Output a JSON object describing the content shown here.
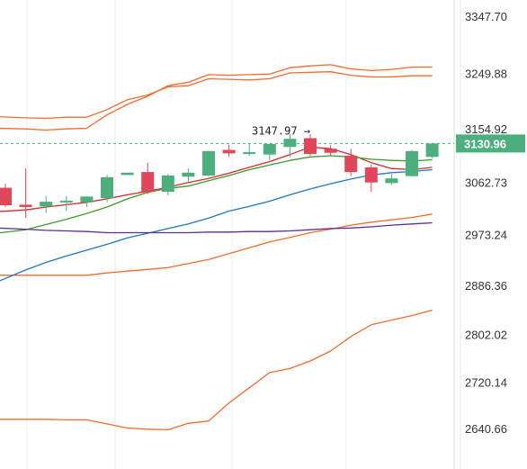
{
  "chart_data": {
    "type": "candlestick",
    "title": "",
    "xlabel": "",
    "ylabel": "",
    "ylim": [
      2618,
      3370
    ],
    "grid": true,
    "y_ticks": [
      "3347.70",
      "3249.88",
      "3154.92",
      "3130.96",
      "3062.73",
      "2973.24",
      "2886.36",
      "2802.02",
      "2720.14",
      "2640.66"
    ],
    "last_price_label": "3130.96",
    "high_annotation": "3147.97 →",
    "high_annotation_value": 3147.97,
    "colors": {
      "up": "#4caf7d",
      "down": "#e0475a",
      "band": "#f26b2d",
      "ma_red": "#d42b2b",
      "ma_green": "#3d9c2a",
      "ma_blue": "#1e78c8",
      "ma_purple": "#5a2d9c",
      "price_line": "#4caf7d",
      "grid": "#ececec",
      "axis": "#dddddd"
    },
    "candles": [
      {
        "o": 3055,
        "h": 3062,
        "c": 3025,
        "l": 3022
      },
      {
        "o": 3026,
        "h": 3088,
        "c": 3022,
        "l": 3003
      },
      {
        "o": 3023,
        "h": 3041,
        "c": 3031,
        "l": 3012
      },
      {
        "o": 3030,
        "h": 3041,
        "c": 3033,
        "l": 3015
      },
      {
        "o": 3030,
        "h": 3040,
        "c": 3040,
        "l": 3022
      },
      {
        "o": 3037,
        "h": 3077,
        "c": 3073,
        "l": 3030
      },
      {
        "o": 3077,
        "h": 3080,
        "c": 3081,
        "l": 3077
      },
      {
        "o": 3082,
        "h": 3098,
        "c": 3048,
        "l": 3044
      },
      {
        "o": 3048,
        "h": 3079,
        "c": 3076,
        "l": 3042
      },
      {
        "o": 3074,
        "h": 3088,
        "c": 3081,
        "l": 3066
      },
      {
        "o": 3076,
        "h": 3118,
        "c": 3118,
        "l": 3074
      },
      {
        "o": 3120,
        "h": 3129,
        "c": 3114,
        "l": 3108
      },
      {
        "o": 3114,
        "h": 3130,
        "c": 3116,
        "l": 3110
      },
      {
        "o": 3112,
        "h": 3130,
        "c": 3130,
        "l": 3102
      },
      {
        "o": 3125,
        "h": 3147,
        "c": 3139,
        "l": 3108
      },
      {
        "o": 3140,
        "h": 3147,
        "c": 3113,
        "l": 3110
      },
      {
        "o": 3122,
        "h": 3128,
        "c": 3115,
        "l": 3110
      },
      {
        "o": 3110,
        "h": 3122,
        "c": 3082,
        "l": 3075
      },
      {
        "o": 3090,
        "h": 3095,
        "c": 3064,
        "l": 3048
      },
      {
        "o": 3063,
        "h": 3079,
        "c": 3071,
        "l": 3060
      },
      {
        "o": 3075,
        "h": 3120,
        "c": 3118,
        "l": 3075
      },
      {
        "o": 3108,
        "h": 3132,
        "c": 3131,
        "l": 3106
      }
    ],
    "series": [
      {
        "name": "",
        "kind": "band_upper",
        "values": [
          3177,
          3175,
          3174,
          3176,
          3176,
          3189,
          3206,
          3214,
          3228,
          3230,
          3242,
          3241,
          3240,
          3242,
          3252,
          3253,
          3254,
          3248,
          3245,
          3245,
          3247,
          3247
        ]
      },
      {
        "name": "",
        "kind": "band_lower",
        "values": [
          2905,
          2905,
          2905,
          2905,
          2905,
          2909,
          2912,
          2915,
          2918,
          2925,
          2932,
          2942,
          2952,
          2962,
          2970,
          2978,
          2984,
          2991,
          2996,
          3000,
          3004,
          3010
        ]
      },
      {
        "name": "",
        "kind": "ma_red",
        "values": [
          3014,
          3017,
          3022,
          3026,
          3030,
          3036,
          3043,
          3049,
          3056,
          3064,
          3071,
          3080,
          3090,
          3100,
          3112,
          3125,
          3122,
          3112,
          3098,
          3088,
          3086,
          3090
        ]
      },
      {
        "name": "",
        "kind": "ma_green",
        "values": [
          2977,
          2983,
          2992,
          3001,
          3011,
          3022,
          3036,
          3047,
          3054,
          3058,
          3067,
          3076,
          3086,
          3094,
          3102,
          3108,
          3110,
          3108,
          3104,
          3102,
          3101,
          3103
        ]
      },
      {
        "name": "",
        "kind": "ma_blue",
        "values": [
          2893,
          2914,
          2927,
          2938,
          2948,
          2958,
          2969,
          2977,
          2985,
          2993,
          3003,
          3015,
          3023,
          3032,
          3043,
          3053,
          3062,
          3070,
          3077,
          3081,
          3083,
          3086
        ]
      },
      {
        "name": "",
        "kind": "ma_purple",
        "values": [
          2986,
          2984,
          2982,
          2981,
          2980,
          2978,
          2978,
          2978,
          2978,
          2978,
          2979,
          2979,
          2980,
          2980,
          2981,
          2983,
          2985,
          2986,
          2988,
          2991,
          2993,
          2995
        ]
      },
      {
        "name": "",
        "kind": "band_upper_outer",
        "values": [
          3157,
          3156,
          3154,
          3156,
          3157,
          3180,
          3198,
          3212,
          3230,
          3236,
          3249,
          3248,
          3249,
          3250,
          3261,
          3264,
          3266,
          3259,
          3256,
          3258,
          3262,
          3262
        ]
      },
      {
        "name": "",
        "kind": "band_lower_outer",
        "values": [
          2658,
          2658,
          2658,
          2657,
          2657,
          2650,
          2643,
          2641,
          2640,
          2651,
          2655,
          2686,
          2712,
          2738,
          2745,
          2758,
          2775,
          2800,
          2820,
          2828,
          2836,
          2845
        ]
      }
    ]
  }
}
